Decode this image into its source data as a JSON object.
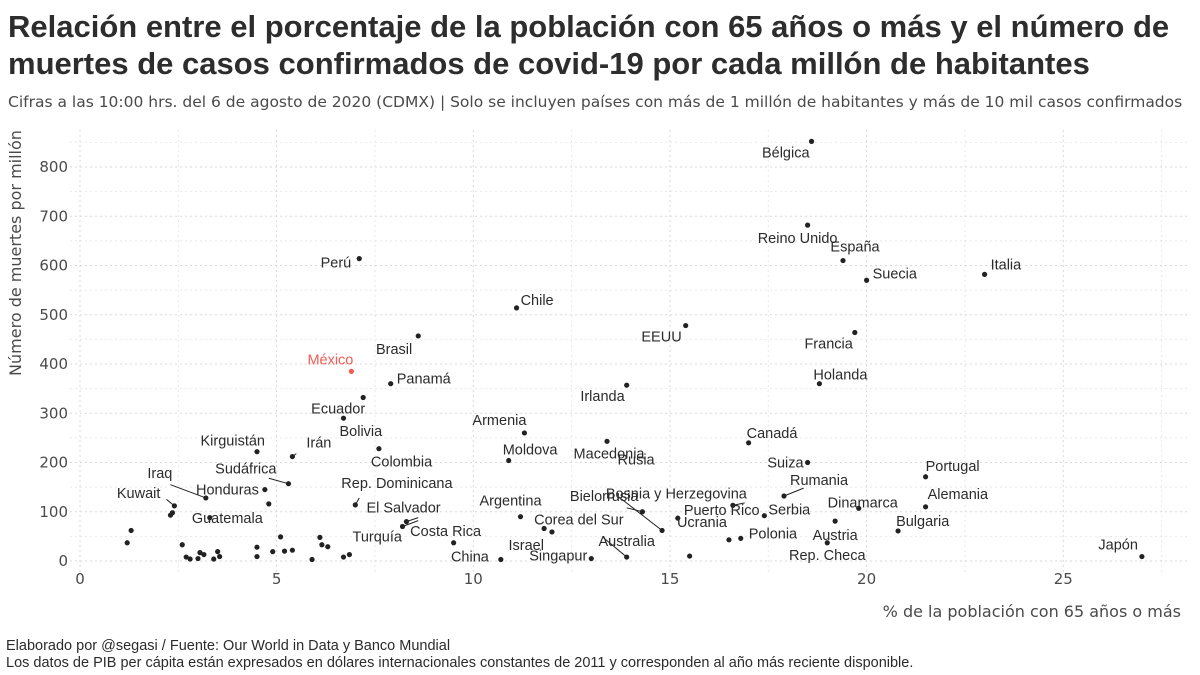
{
  "title": "Relación entre el porcentaje de la población con 65 años o más y el número de muertes de casos confirmados de covid-19 por cada millón de habitantes",
  "subtitle": "Cifras a las 10:00 hrs. del 6 de agosto de 2020 (CDMX) | Solo se incluyen países con más de 1 millón de habitantes y más de 10 mil casos confirmados",
  "caption_line1": "Elaborado por @segasi / Fuente: Our World in Data y Banco Mundial",
  "caption_line2": "Los datos de PIB per cápita están expresados en dólares internacionales constantes de 2011 y corresponden al año más reciente disponible.",
  "colors": {
    "point": "#222222",
    "highlight": "#f25c54",
    "grid": "#d9d9d9",
    "text": "#2b2b2b"
  },
  "chart_data": {
    "type": "scatter",
    "xlabel": "% de la población con 65 años o más",
    "ylabel": "Número de muertes por millón",
    "xlim": [
      0,
      28
    ],
    "ylim": [
      0,
      870
    ],
    "xticks": [
      0,
      5,
      10,
      15,
      20,
      25
    ],
    "yticks": [
      0,
      100,
      200,
      300,
      400,
      500,
      600,
      700,
      800
    ],
    "grid": true,
    "labeled_points": [
      {
        "name": "Bélgica",
        "x": 18.6,
        "y": 852
      },
      {
        "name": "Reino Unido",
        "x": 18.5,
        "y": 682
      },
      {
        "name": "España",
        "x": 19.4,
        "y": 610
      },
      {
        "name": "Italia",
        "x": 23.0,
        "y": 582
      },
      {
        "name": "Suecia",
        "x": 20.0,
        "y": 570
      },
      {
        "name": "Perú",
        "x": 7.1,
        "y": 614
      },
      {
        "name": "Chile",
        "x": 11.1,
        "y": 514
      },
      {
        "name": "EEUU",
        "x": 15.4,
        "y": 478
      },
      {
        "name": "Francia",
        "x": 19.7,
        "y": 464
      },
      {
        "name": "Brasil",
        "x": 8.6,
        "y": 457
      },
      {
        "name": "México",
        "x": 6.9,
        "y": 385,
        "highlight": true
      },
      {
        "name": "Panamá",
        "x": 7.9,
        "y": 360
      },
      {
        "name": "Holanda",
        "x": 18.8,
        "y": 360
      },
      {
        "name": "Irlanda",
        "x": 13.9,
        "y": 357
      },
      {
        "name": "Ecuador",
        "x": 7.2,
        "y": 332
      },
      {
        "name": "Bolivia",
        "x": 6.7,
        "y": 290
      },
      {
        "name": "Armenia",
        "x": 11.3,
        "y": 260
      },
      {
        "name": "Macedonia",
        "x": 13.4,
        "y": 243
      },
      {
        "name": "Canadá",
        "x": 17.0,
        "y": 240
      },
      {
        "name": "Colombia",
        "x": 7.6,
        "y": 228
      },
      {
        "name": "Kirguistán",
        "x": 4.5,
        "y": 222
      },
      {
        "name": "Irán",
        "x": 5.4,
        "y": 212
      },
      {
        "name": "Moldova",
        "x": 10.9,
        "y": 204
      },
      {
        "name": "Suiza",
        "x": 18.5,
        "y": 200
      },
      {
        "name": "Portugal",
        "x": 21.5,
        "y": 171
      },
      {
        "name": "Sudáfrica",
        "x": 5.3,
        "y": 157
      },
      {
        "name": "Honduras",
        "x": 4.7,
        "y": 145
      },
      {
        "name": "Rumania",
        "x": 17.9,
        "y": 132
      },
      {
        "name": "Iraq",
        "x": 3.2,
        "y": 128
      },
      {
        "name": "Kuwait",
        "x": 2.4,
        "y": 112
      },
      {
        "name": "Guatemala",
        "x": 4.8,
        "y": 116
      },
      {
        "name": "Rep. Dominicana",
        "x": 7.0,
        "y": 114
      },
      {
        "name": "Bosnia y Herzegovina",
        "x": 16.6,
        "y": 113
      },
      {
        "name": "Alemania",
        "x": 21.5,
        "y": 110
      },
      {
        "name": "Dinamarca",
        "x": 19.8,
        "y": 107
      },
      {
        "name": "Bielorrusia",
        "x": 14.3,
        "y": 100
      },
      {
        "name": "Rusia",
        "x": 14.8,
        "y": 62
      },
      {
        "name": "Serbia",
        "x": 17.4,
        "y": 92
      },
      {
        "name": "Argentina",
        "x": 11.2,
        "y": 90
      },
      {
        "name": "Puerto Rico",
        "x": 15.2,
        "y": 87
      },
      {
        "name": "El Salvador",
        "x": 8.3,
        "y": 80
      },
      {
        "name": "Austria",
        "x": 19.2,
        "y": 81
      },
      {
        "name": "Turquía",
        "x": 8.2,
        "y": 70
      },
      {
        "name": "Costa Rica",
        "x": 9.5,
        "y": 37
      },
      {
        "name": "Corea del Sur",
        "x": 11.8,
        "y": 66
      },
      {
        "name": "Ucrania",
        "x": 16.5,
        "y": 43
      },
      {
        "name": "Polonia",
        "x": 16.8,
        "y": 46
      },
      {
        "name": "Bulgaria",
        "x": 20.8,
        "y": 61
      },
      {
        "name": "Israel",
        "x": 12.0,
        "y": 59
      },
      {
        "name": "Rep. Checa",
        "x": 19.0,
        "y": 37
      },
      {
        "name": "Australia",
        "x": 13.9,
        "y": 8
      },
      {
        "name": "China",
        "x": 10.7,
        "y": 3
      },
      {
        "name": "Singapur",
        "x": 13.0,
        "y": 5
      },
      {
        "name": "Japón",
        "x": 27.0,
        "y": 9
      }
    ],
    "unlabeled_points": [
      {
        "x": 1.2,
        "y": 37
      },
      {
        "x": 1.3,
        "y": 62
      },
      {
        "x": 2.3,
        "y": 93
      },
      {
        "x": 2.35,
        "y": 98
      },
      {
        "x": 2.6,
        "y": 33
      },
      {
        "x": 2.7,
        "y": 8
      },
      {
        "x": 2.8,
        "y": 4
      },
      {
        "x": 3.0,
        "y": 5
      },
      {
        "x": 3.05,
        "y": 17
      },
      {
        "x": 3.15,
        "y": 13
      },
      {
        "x": 3.3,
        "y": 88
      },
      {
        "x": 3.4,
        "y": 4
      },
      {
        "x": 3.5,
        "y": 19
      },
      {
        "x": 3.55,
        "y": 9
      },
      {
        "x": 4.5,
        "y": 28
      },
      {
        "x": 4.5,
        "y": 9
      },
      {
        "x": 4.9,
        "y": 19
      },
      {
        "x": 5.1,
        "y": 49
      },
      {
        "x": 5.2,
        "y": 20
      },
      {
        "x": 5.4,
        "y": 22
      },
      {
        "x": 5.9,
        "y": 3
      },
      {
        "x": 6.1,
        "y": 48
      },
      {
        "x": 6.15,
        "y": 33
      },
      {
        "x": 6.3,
        "y": 29
      },
      {
        "x": 6.7,
        "y": 8
      },
      {
        "x": 6.85,
        "y": 13
      },
      {
        "x": 15.5,
        "y": 10
      }
    ],
    "leaders": [
      {
        "from": [
          3.2,
          128
        ],
        "to": [
          2.3,
          155
        ]
      },
      {
        "from": [
          2.4,
          112
        ],
        "to": [
          2.2,
          125
        ]
      },
      {
        "from": [
          5.3,
          157
        ],
        "to": [
          4.8,
          168
        ]
      },
      {
        "from": [
          5.4,
          212
        ],
        "to": [
          5.5,
          218
        ]
      },
      {
        "from": [
          7.0,
          114
        ],
        "to": [
          7.1,
          128
        ]
      },
      {
        "from": [
          8.2,
          70
        ],
        "to": [
          8.6,
          82
        ]
      },
      {
        "from": [
          8.3,
          80
        ],
        "to": [
          8.6,
          88
        ]
      },
      {
        "from": [
          17.9,
          132
        ],
        "to": [
          18.4,
          148
        ]
      },
      {
        "from": [
          14.3,
          100
        ],
        "to": [
          13.9,
          108
        ]
      },
      {
        "from": [
          14.8,
          62
        ],
        "to": [
          13.7,
          130
        ]
      },
      {
        "from": [
          13.9,
          8
        ],
        "to": [
          13.3,
          48
        ]
      },
      {
        "from": [
          16.6,
          113
        ],
        "to": [
          16.9,
          118
        ]
      }
    ]
  }
}
